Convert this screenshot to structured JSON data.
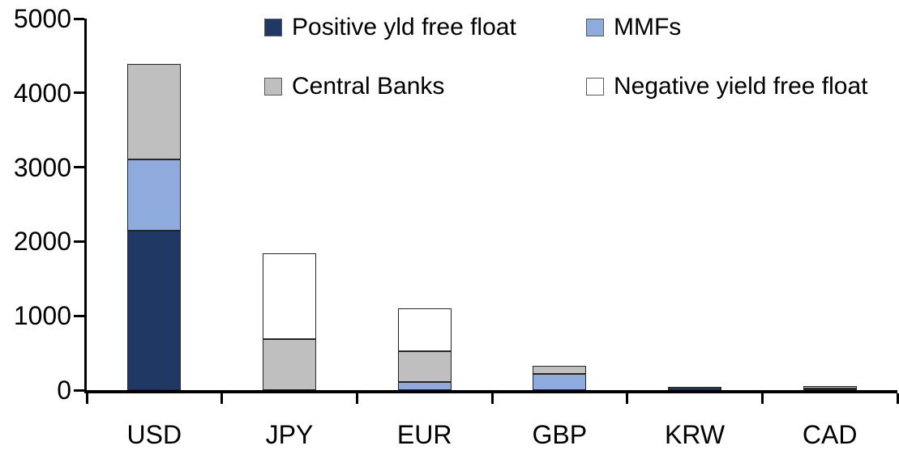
{
  "chart_data": {
    "type": "bar",
    "stacked": true,
    "title": "",
    "xlabel": "",
    "ylabel": "",
    "categories": [
      "USD",
      "JPY",
      "EUR",
      "GBP",
      "KRW",
      "CAD"
    ],
    "series": [
      {
        "name": "Positive yld free float",
        "color": "#1f3864",
        "values": [
          2150,
          0,
          0,
          0,
          40,
          25
        ]
      },
      {
        "name": "MMFs",
        "color": "#8faadc",
        "values": [
          950,
          0,
          110,
          220,
          0,
          0
        ]
      },
      {
        "name": "Central Banks",
        "color": "#bfbfbf",
        "values": [
          1290,
          690,
          415,
          110,
          0,
          30
        ]
      },
      {
        "name": "Negative yield free float",
        "color": "#ffffff",
        "values": [
          0,
          1150,
          580,
          0,
          0,
          0
        ]
      }
    ],
    "ylim": [
      0,
      5000
    ],
    "yticks": [
      0,
      1000,
      2000,
      3000,
      4000,
      5000
    ],
    "grid": false,
    "legend_position": "top",
    "legend_items": [
      {
        "label": "Positive yld free float",
        "color": "#1f3864"
      },
      {
        "label": "MMFs",
        "color": "#8faadc"
      },
      {
        "label": "Central Banks",
        "color": "#bfbfbf"
      },
      {
        "label": "Negative yield free float",
        "color": "#ffffff"
      }
    ],
    "axis_color": "#000000",
    "segment_border_color": "#262626"
  }
}
